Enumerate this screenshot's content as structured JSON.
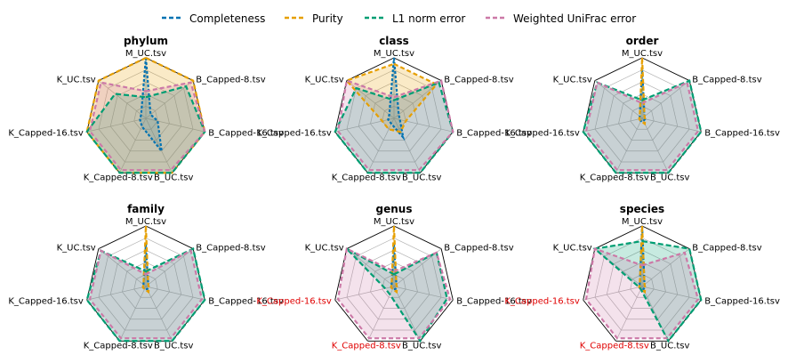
{
  "colors": {
    "completeness": "#0072b2",
    "purity": "#e69f00",
    "l1": "#009e73",
    "unifrac": "#cc79a7",
    "highlight_label": "#e00000",
    "grid": "#b0b0b0"
  },
  "legend": [
    "Completeness",
    "Purity",
    "L1 norm error",
    "Weighted UniFrac error"
  ],
  "axes": [
    "M_UC.tsv",
    "B_Capped-8.tsv",
    "B_Capped-16.tsv",
    "B_UC.tsv",
    "K_Capped-8.tsv",
    "K_Capped-16.tsv",
    "K_UC.tsv"
  ],
  "chart_data": [
    {
      "type": "radar",
      "title": "phylum",
      "rlim": [
        0,
        1
      ],
      "grid_levels": 5,
      "highlighted_axes": [],
      "series": [
        {
          "name": "Completeness",
          "values": [
            1.0,
            0.1,
            0.2,
            0.6,
            0.15,
            0.1,
            0.1
          ]
        },
        {
          "name": "Purity",
          "values": [
            1.0,
            1.0,
            1.0,
            1.0,
            1.0,
            1.0,
            1.0
          ]
        },
        {
          "name": "L1 norm error",
          "values": [
            0.35,
            0.85,
            1.0,
            1.0,
            1.0,
            1.0,
            0.65
          ]
        },
        {
          "name": "Weighted UniFrac error",
          "values": [
            0.45,
            0.95,
            1.0,
            0.95,
            0.95,
            0.95,
            0.95
          ]
        }
      ]
    },
    {
      "type": "radar",
      "title": "class",
      "rlim": [
        0,
        1
      ],
      "grid_levels": 5,
      "highlighted_axes": [],
      "series": [
        {
          "name": "Completeness",
          "values": [
            1.0,
            0.1,
            0.1,
            0.35,
            0.1,
            0.1,
            0.1
          ]
        },
        {
          "name": "Purity",
          "values": [
            0.9,
            0.9,
            0.2,
            0.25,
            0.2,
            0.2,
            1.0
          ]
        },
        {
          "name": "L1 norm error",
          "values": [
            0.3,
            0.95,
            1.0,
            1.0,
            1.0,
            1.0,
            0.8
          ]
        },
        {
          "name": "Weighted UniFrac error",
          "values": [
            0.35,
            1.0,
            1.0,
            0.95,
            0.95,
            0.95,
            1.0
          ]
        }
      ]
    },
    {
      "type": "radar",
      "title": "order",
      "rlim": [
        0,
        1
      ],
      "grid_levels": 5,
      "highlighted_axes": [],
      "series": [
        {
          "name": "Completeness",
          "values": [
            0.8,
            0.05,
            0.05,
            0.05,
            0.05,
            0.05,
            0.05
          ]
        },
        {
          "name": "Purity",
          "values": [
            1.0,
            0.05,
            0.05,
            0.1,
            0.05,
            0.05,
            0.05
          ]
        },
        {
          "name": "L1 norm error",
          "values": [
            0.3,
            1.0,
            1.0,
            1.0,
            1.0,
            1.0,
            0.95
          ]
        },
        {
          "name": "Weighted UniFrac error",
          "values": [
            0.25,
            0.95,
            0.95,
            0.95,
            0.95,
            0.95,
            0.95
          ]
        }
      ]
    },
    {
      "type": "radar",
      "title": "family",
      "rlim": [
        0,
        1
      ],
      "grid_levels": 5,
      "highlighted_axes": [],
      "series": [
        {
          "name": "Completeness",
          "values": [
            0.7,
            0.05,
            0.05,
            0.05,
            0.05,
            0.05,
            0.05
          ]
        },
        {
          "name": "Purity",
          "values": [
            1.0,
            0.05,
            0.05,
            0.1,
            0.05,
            0.05,
            0.05
          ]
        },
        {
          "name": "L1 norm error",
          "values": [
            0.25,
            1.0,
            1.0,
            1.0,
            1.0,
            1.0,
            0.95
          ]
        },
        {
          "name": "Weighted UniFrac error",
          "values": [
            0.2,
            0.95,
            0.95,
            0.95,
            0.95,
            0.95,
            0.95
          ]
        }
      ]
    },
    {
      "type": "radar",
      "title": "genus",
      "rlim": [
        0,
        1
      ],
      "grid_levels": 5,
      "highlighted_axes": [
        "K_Capped-16.tsv",
        "K_Capped-8.tsv"
      ],
      "series": [
        {
          "name": "Completeness",
          "values": [
            0.7,
            0.05,
            0.05,
            0.05,
            0.05,
            0.05,
            0.05
          ]
        },
        {
          "name": "Purity",
          "values": [
            1.0,
            0.05,
            0.05,
            0.1,
            0.05,
            0.05,
            0.05
          ]
        },
        {
          "name": "L1 norm error",
          "values": [
            0.2,
            0.9,
            0.9,
            1.0,
            0.15,
            0.15,
            1.0
          ]
        },
        {
          "name": "Weighted UniFrac error",
          "values": [
            0.25,
            0.9,
            0.95,
            0.95,
            0.95,
            0.95,
            1.0
          ]
        }
      ]
    },
    {
      "type": "radar",
      "title": "species",
      "rlim": [
        0,
        1
      ],
      "grid_levels": 5,
      "highlighted_axes": [
        "K_Capped-16.tsv",
        "K_Capped-8.tsv"
      ],
      "series": [
        {
          "name": "Completeness",
          "values": [
            1.0,
            0.05,
            0.05,
            0.05,
            0.05,
            0.05,
            0.05
          ]
        },
        {
          "name": "Purity",
          "values": [
            1.0,
            0.05,
            0.05,
            0.1,
            0.05,
            0.05,
            0.05
          ]
        },
        {
          "name": "L1 norm error",
          "values": [
            0.75,
            1.0,
            1.0,
            1.0,
            0.05,
            0.05,
            1.0
          ]
        },
        {
          "name": "Weighted UniFrac error",
          "values": [
            0.35,
            0.9,
            0.95,
            0.95,
            0.95,
            0.95,
            1.0
          ]
        }
      ]
    }
  ]
}
